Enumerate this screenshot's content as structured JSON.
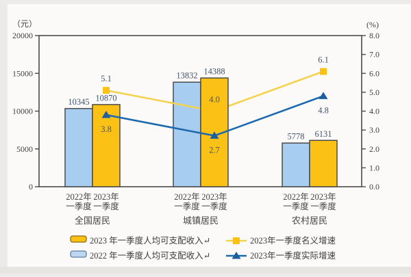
{
  "chart_data": {
    "type": "bar+line",
    "title": "",
    "categories": [
      "全国居民",
      "城镇居民",
      "农村居民"
    ],
    "x_sub_labels": [
      [
        "2022年",
        "一季度"
      ],
      [
        "2023年",
        "一季度"
      ]
    ],
    "bar_series": [
      {
        "name": "2022 年一季度人均可支配收入",
        "values": [
          10345,
          13832,
          5778
        ],
        "fill": "#A7CDF0",
        "stroke": "#4a4a4a",
        "axis": "left"
      },
      {
        "name": "2023 年一季度人均可支配收入",
        "values": [
          10870,
          14388,
          6131
        ],
        "fill": "#FCC115",
        "stroke": "#4a4a4a",
        "axis": "left"
      }
    ],
    "line_series": [
      {
        "name": "2023年一季度名义增速",
        "values": [
          5.1,
          4.0,
          6.1
        ],
        "color": "#F5D24E",
        "marker_color": "#FCC115",
        "marker": "square",
        "axis": "right",
        "label_side": "above"
      },
      {
        "name": "2023年一季度实际增速",
        "values": [
          3.8,
          2.7,
          4.8
        ],
        "color": "#1E6AAE",
        "marker_color": "#1E5E9E",
        "marker": "triangle",
        "axis": "right",
        "label_side": "below"
      }
    ],
    "left_axis": {
      "unit": "（元）",
      "min": 0,
      "max": 20000,
      "step": 5000,
      "ticks": [
        "0",
        "5000",
        "10000",
        "15000",
        "20000"
      ]
    },
    "right_axis": {
      "unit": "(%)",
      "min": 0,
      "max": 8,
      "step": 1,
      "ticks": [
        "0.0",
        "1.0",
        "2.0",
        "3.0",
        "4.0",
        "5.0",
        "6.0",
        "7.0",
        "8.0"
      ]
    },
    "grid": false,
    "legend_position": "bottom",
    "colors": {
      "axis": "#4a4a4a",
      "tick_text": "#3f3f3f",
      "value_label": "#44546A",
      "x_label": "#454545",
      "legend_text": "#3c3c3c"
    }
  },
  "legend": {
    "bars": [
      {
        "label": "2023 年一季度人均可支配收入↵",
        "fill": "#FCC115",
        "stroke": "#8a6a1a"
      },
      {
        "label": "2022 年一季度人均可支配收入↵",
        "fill": "#BDD7EE",
        "stroke": "#5b7ea6"
      }
    ],
    "lines": [
      {
        "label": "2023年一季度名义增速",
        "color": "#F5D24E",
        "marker_color": "#FCC115",
        "marker": "square"
      },
      {
        "label": "2023年一季度实际增速",
        "color": "#1E6AAE",
        "marker_color": "#1E5E9E",
        "marker": "triangle"
      }
    ]
  }
}
